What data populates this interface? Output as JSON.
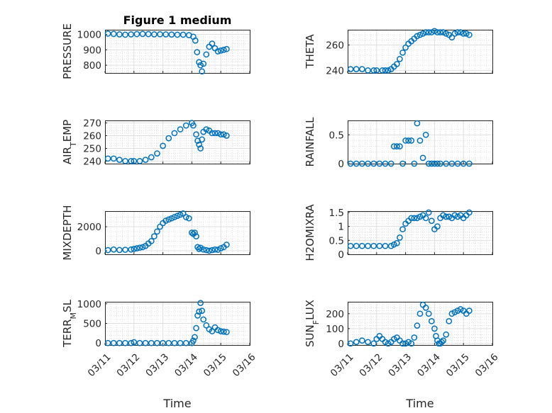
{
  "chart_data": {
    "title": "Figure 1 medium",
    "marker_color": "#0072BD",
    "marker": "open-circle",
    "grid": true,
    "minor_grid": true,
    "x_ticks": [
      "03/11",
      "03/12",
      "03/13",
      "03/14",
      "03/15",
      "03/16"
    ],
    "xlabel": "Time",
    "subplots": [
      {
        "type": "scatter",
        "ylabel": "PRESSURE",
        "ylim": [
          750,
          1030
        ],
        "y_ticks": [
          {
            "v": 800,
            "t": "800"
          },
          {
            "v": 900,
            "t": "900"
          },
          {
            "v": 1000,
            "t": "1000"
          }
        ],
        "x": [
          0.1,
          0.3,
          0.5,
          0.7,
          0.9,
          1.1,
          1.3,
          1.5,
          1.7,
          1.9,
          2.1,
          2.3,
          2.5,
          2.7,
          2.9,
          3.05,
          3.12,
          3.18,
          3.25,
          3.3,
          3.35,
          3.4,
          3.5,
          3.6,
          3.7,
          3.8,
          3.9,
          4.0,
          4.1,
          4.2
        ],
        "y": [
          1005,
          1003,
          1000,
          998,
          1000,
          1002,
          1003,
          1002,
          1000,
          1001,
          1000,
          999,
          998,
          998,
          995,
          985,
          960,
          885,
          820,
          800,
          760,
          810,
          870,
          920,
          940,
          910,
          890,
          895,
          900,
          905
        ]
      },
      {
        "type": "scatter",
        "ylabel": "THETA",
        "ylim": [
          238,
          272
        ],
        "y_ticks": [
          {
            "v": 240,
            "t": "240"
          },
          {
            "v": 260,
            "t": "260"
          }
        ],
        "x": [
          0.1,
          0.3,
          0.5,
          0.7,
          0.9,
          1.0,
          1.2,
          1.3,
          1.4,
          1.5,
          1.6,
          1.7,
          1.8,
          1.9,
          2.0,
          2.1,
          2.2,
          2.3,
          2.4,
          2.5,
          2.6,
          2.7,
          2.8,
          2.9,
          3.0,
          3.1,
          3.2,
          3.3,
          3.4,
          3.5,
          3.6,
          3.7,
          3.8,
          3.9,
          4.0,
          4.1,
          4.2
        ],
        "y": [
          241,
          241,
          241,
          240,
          240,
          240,
          240,
          240,
          240,
          241,
          243,
          245,
          249,
          254,
          258,
          261,
          263,
          265,
          267,
          268,
          269,
          270,
          270,
          270,
          271,
          270,
          270,
          270,
          269,
          268,
          266,
          269,
          270,
          270,
          269,
          269,
          268
        ]
      },
      {
        "type": "scatter",
        "ylabel": "AIR_TEMP",
        "ylim": [
          238,
          272
        ],
        "y_ticks": [
          {
            "v": 240,
            "t": "240"
          },
          {
            "v": 250,
            "t": "250"
          },
          {
            "v": 260,
            "t": "260"
          },
          {
            "v": 270,
            "t": "270"
          }
        ],
        "x": [
          0.1,
          0.3,
          0.5,
          0.7,
          0.9,
          1.0,
          1.2,
          1.4,
          1.6,
          1.8,
          2.0,
          2.2,
          2.4,
          2.6,
          2.8,
          3.0,
          3.05,
          3.15,
          3.2,
          3.25,
          3.3,
          3.35,
          3.4,
          3.5,
          3.6,
          3.7,
          3.8,
          3.9,
          4.0,
          4.1,
          4.2
        ],
        "y": [
          242,
          242,
          241,
          240,
          240,
          240,
          240,
          241,
          243,
          246,
          252,
          258,
          262,
          265,
          268,
          270,
          268,
          261,
          256,
          253,
          250,
          257,
          263,
          265,
          264,
          262,
          262,
          262,
          261,
          261,
          260
        ]
      },
      {
        "type": "scatter",
        "ylabel": "RAINFALL",
        "ylim": [
          0,
          0.75
        ],
        "y_ticks": [
          {
            "v": 0,
            "t": "0"
          },
          {
            "v": 0.5,
            "t": "0.5"
          }
        ],
        "x": [
          0.1,
          0.3,
          0.5,
          0.7,
          0.9,
          1.1,
          1.3,
          1.5,
          1.6,
          1.7,
          1.8,
          1.9,
          2.0,
          2.1,
          2.2,
          2.3,
          2.4,
          2.5,
          2.6,
          2.7,
          2.8,
          2.9,
          3.0,
          3.1,
          3.2,
          3.4,
          3.6,
          3.8,
          4.0,
          4.2
        ],
        "y": [
          0,
          0,
          0,
          0,
          0,
          0,
          0,
          0,
          0.3,
          0.3,
          0.3,
          0,
          0.4,
          0.4,
          0.4,
          0,
          0.7,
          0.4,
          0.1,
          0.5,
          0,
          0,
          0,
          0,
          0,
          0,
          0,
          0,
          0,
          0
        ]
      },
      {
        "type": "scatter",
        "ylabel": "MIXDEPTH",
        "ylim": [
          -300,
          3300
        ],
        "y_ticks": [
          {
            "v": 0,
            "t": "0"
          },
          {
            "v": 2000,
            "t": "2000"
          }
        ],
        "x": [
          0.1,
          0.3,
          0.5,
          0.7,
          0.9,
          1.0,
          1.1,
          1.2,
          1.3,
          1.4,
          1.5,
          1.6,
          1.7,
          1.8,
          1.9,
          2.0,
          2.1,
          2.2,
          2.3,
          2.4,
          2.5,
          2.6,
          2.7,
          2.8,
          2.9,
          3.0,
          3.05,
          3.1,
          3.15,
          3.2,
          3.25,
          3.3,
          3.4,
          3.5,
          3.6,
          3.7,
          3.8,
          3.9,
          4.0,
          4.1,
          4.2
        ],
        "y": [
          50,
          100,
          60,
          80,
          100,
          150,
          200,
          250,
          300,
          400,
          600,
          800,
          1200,
          1600,
          2000,
          2300,
          2500,
          2600,
          2700,
          2800,
          2900,
          3000,
          3100,
          2800,
          2700,
          1500,
          1400,
          1500,
          1200,
          300,
          150,
          250,
          100,
          50,
          0,
          50,
          100,
          80,
          200,
          300,
          500
        ]
      },
      {
        "type": "scatter",
        "ylabel": "H2OMIXRA",
        "ylim": [
          0,
          1.55
        ],
        "y_ticks": [
          {
            "v": 0,
            "t": "0"
          },
          {
            "v": 0.5,
            "t": "0.5"
          },
          {
            "v": 1,
            "t": "1"
          },
          {
            "v": 1.5,
            "t": "1.5"
          }
        ],
        "x": [
          0.1,
          0.3,
          0.5,
          0.7,
          0.9,
          1.1,
          1.3,
          1.5,
          1.6,
          1.7,
          1.8,
          1.9,
          2.0,
          2.1,
          2.2,
          2.3,
          2.4,
          2.5,
          2.6,
          2.7,
          2.8,
          2.9,
          3.0,
          3.1,
          3.2,
          3.3,
          3.4,
          3.5,
          3.6,
          3.7,
          3.8,
          3.9,
          4.0,
          4.1,
          4.2
        ],
        "y": [
          0.3,
          0.3,
          0.3,
          0.3,
          0.3,
          0.3,
          0.3,
          0.3,
          0.35,
          0.4,
          0.6,
          0.9,
          1.1,
          1.2,
          1.3,
          1.3,
          1.3,
          1.35,
          1.4,
          1.3,
          1.5,
          1.2,
          0.9,
          1.0,
          1.3,
          1.4,
          1.35,
          1.35,
          1.3,
          1.4,
          1.35,
          1.4,
          1.3,
          1.4,
          1.5
        ]
      },
      {
        "type": "scatter",
        "ylabel": "TERR_MSL",
        "ylim": [
          -50,
          1050
        ],
        "y_ticks": [
          {
            "v": 0,
            "t": "0"
          },
          {
            "v": 500,
            "t": "500"
          },
          {
            "v": 1000,
            "t": "1000"
          }
        ],
        "x": [
          0.1,
          0.3,
          0.5,
          0.7,
          0.9,
          1.0,
          1.2,
          1.4,
          1.6,
          1.8,
          2.0,
          2.2,
          2.4,
          2.6,
          2.8,
          3.0,
          3.05,
          3.1,
          3.15,
          3.2,
          3.25,
          3.3,
          3.35,
          3.4,
          3.5,
          3.6,
          3.7,
          3.8,
          3.9,
          4.0,
          4.1,
          4.2
        ],
        "y": [
          0,
          0,
          0,
          0,
          0,
          20,
          0,
          0,
          0,
          0,
          0,
          0,
          0,
          0,
          0,
          0,
          60,
          150,
          380,
          700,
          800,
          1020,
          820,
          600,
          450,
          350,
          300,
          400,
          330,
          300,
          290,
          280
        ]
      },
      {
        "type": "scatter",
        "ylabel": "SUN_FLUX",
        "ylim": [
          -10,
          280
        ],
        "y_ticks": [
          {
            "v": 0,
            "t": "0"
          },
          {
            "v": 100,
            "t": "100"
          },
          {
            "v": 200,
            "t": "200"
          }
        ],
        "x": [
          0.1,
          0.3,
          0.5,
          0.7,
          0.9,
          1.0,
          1.1,
          1.2,
          1.3,
          1.4,
          1.5,
          1.6,
          1.7,
          1.8,
          1.9,
          2.0,
          2.1,
          2.2,
          2.3,
          2.4,
          2.5,
          2.6,
          2.7,
          2.8,
          2.9,
          3.0,
          3.05,
          3.1,
          3.15,
          3.2,
          3.25,
          3.3,
          3.4,
          3.5,
          3.6,
          3.7,
          3.8,
          3.9,
          4.0,
          4.1,
          4.2
        ],
        "y": [
          0,
          10,
          20,
          10,
          0,
          30,
          50,
          30,
          10,
          0,
          10,
          30,
          40,
          20,
          0,
          0,
          10,
          0,
          40,
          120,
          200,
          260,
          240,
          200,
          150,
          100,
          50,
          20,
          0,
          0,
          10,
          20,
          60,
          150,
          200,
          210,
          220,
          230,
          220,
          200,
          220
        ]
      }
    ]
  }
}
